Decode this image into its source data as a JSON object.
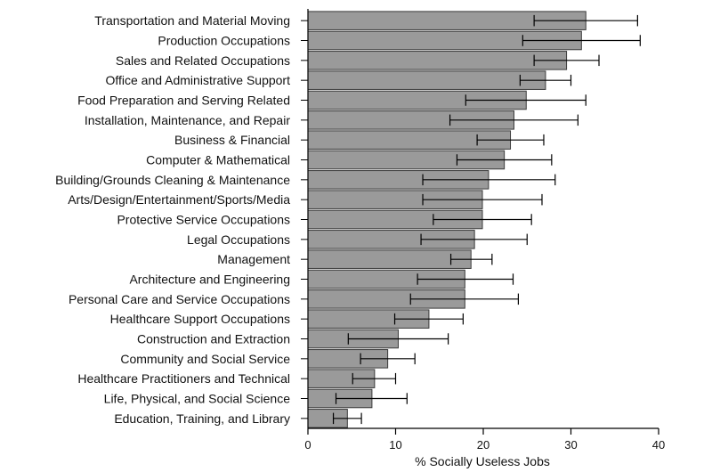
{
  "chart_data": {
    "type": "bar",
    "orientation": "horizontal",
    "xlabel": "% Socially Useless Jobs",
    "xlim": [
      0,
      40
    ],
    "xticks": [
      0,
      10,
      20,
      30,
      40
    ],
    "grid": false,
    "error_bars": true,
    "colors": {
      "bar_fill": "#9a9a9a",
      "bar_edge": "#3a3a3a",
      "error_bar": "#000000",
      "axis": "#000000"
    },
    "categories": [
      "Transportation and Material Moving",
      "Production Occupations",
      "Sales and Related Occupations",
      "Office and Administrative Support",
      "Food Preparation and Serving Related",
      "Installation, Maintenance, and Repair",
      "Business & Financial",
      "Computer & Mathematical",
      "Building/Grounds Cleaning & Maintenance",
      "Arts/Design/Entertainment/Sports/Media",
      "Protective Service Occupations",
      "Legal Occupations",
      "Management",
      "Architecture and Engineering",
      "Personal Care and Service Occupations",
      "Healthcare Support Occupations",
      "Construction and Extraction",
      "Community and Social Service",
      "Healthcare Practitioners and Technical",
      "Life, Physical, and Social Science",
      "Education, Training, and Library"
    ],
    "values": [
      31.7,
      31.2,
      29.5,
      27.1,
      24.9,
      23.5,
      23.1,
      22.4,
      20.6,
      19.9,
      19.9,
      19.0,
      18.6,
      17.9,
      17.9,
      13.8,
      10.3,
      9.1,
      7.6,
      7.3,
      4.5
    ],
    "ci_low": [
      25.8,
      24.5,
      25.8,
      24.2,
      18.0,
      16.2,
      19.3,
      17.0,
      13.1,
      13.1,
      14.3,
      12.9,
      16.3,
      12.5,
      11.7,
      9.9,
      4.6,
      6.0,
      5.1,
      3.2,
      2.9
    ],
    "ci_high": [
      37.6,
      37.9,
      33.2,
      30.0,
      31.7,
      30.8,
      26.9,
      27.8,
      28.2,
      26.7,
      25.5,
      25.0,
      21.0,
      23.4,
      24.0,
      17.7,
      16.0,
      12.2,
      10.0,
      11.3,
      6.1
    ]
  }
}
